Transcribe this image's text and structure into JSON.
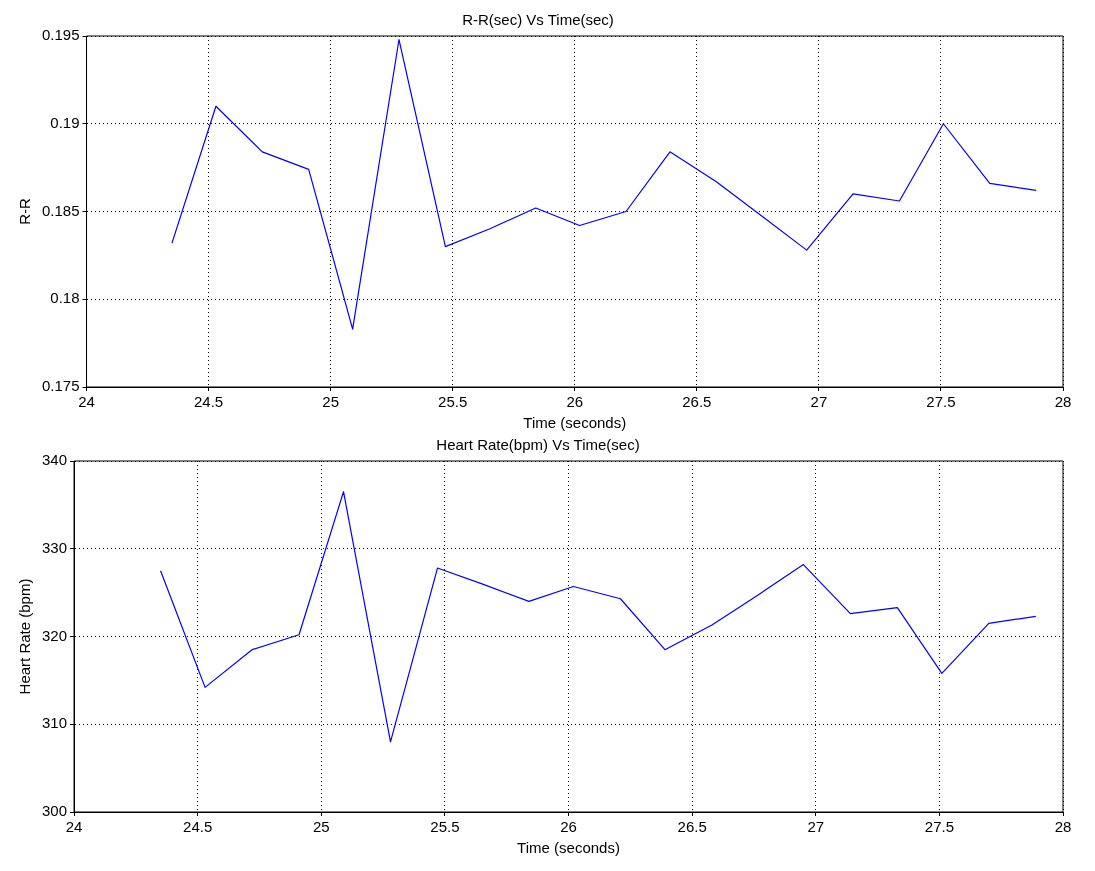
{
  "chart_data": [
    {
      "type": "line",
      "title": "R-R(sec) Vs Time(sec)",
      "xlabel": "Time (seconds)",
      "ylabel": "R-R",
      "x": [
        24.35,
        24.53,
        24.72,
        24.91,
        25.09,
        25.28,
        25.47,
        25.65,
        25.84,
        26.02,
        26.21,
        26.39,
        26.58,
        26.77,
        26.95,
        27.14,
        27.33,
        27.51,
        27.7,
        27.89
      ],
      "series": [
        {
          "color": "#0000ff",
          "values": [
            0.1832,
            0.191,
            0.1884,
            0.1874,
            0.1783,
            0.1948,
            0.183,
            0.184,
            0.1852,
            0.1842,
            0.185,
            0.1884,
            0.1867,
            0.1847,
            0.1828,
            0.186,
            0.1856,
            0.19,
            0.1866,
            0.1862
          ]
        }
      ],
      "xlim": [
        24,
        28
      ],
      "xticks": [
        24,
        24.5,
        25,
        25.5,
        26,
        26.5,
        27,
        27.5,
        28
      ],
      "ylim": [
        0.175,
        0.195
      ],
      "yticks": [
        0.175,
        0.18,
        0.185,
        0.19,
        0.195
      ],
      "grid": true,
      "legend": false,
      "marker": "none",
      "line_style": "solid"
    },
    {
      "type": "line",
      "title": "Heart Rate(bpm) Vs Time(sec)",
      "xlabel": "Time (seconds)",
      "ylabel": "Heart Rate (bpm)",
      "x": [
        24.35,
        24.53,
        24.72,
        24.91,
        25.09,
        25.28,
        25.47,
        25.65,
        25.84,
        26.02,
        26.21,
        26.39,
        26.58,
        26.77,
        26.95,
        27.14,
        27.33,
        27.51,
        27.7,
        27.89
      ],
      "series": [
        {
          "color": "#0000ff",
          "values": [
            327.5,
            314.2,
            318.5,
            320.2,
            336.5,
            308,
            327.8,
            326,
            324,
            325.7,
            324.3,
            318.5,
            321.3,
            324.8,
            328.2,
            322.6,
            323.3,
            315.8,
            321.5,
            322.3
          ]
        }
      ],
      "xlim": [
        24,
        28
      ],
      "xticks": [
        24,
        24.5,
        25,
        25.5,
        26,
        26.5,
        27,
        27.5,
        28
      ],
      "ylim": [
        300,
        340
      ],
      "yticks": [
        300,
        310,
        320,
        330,
        340
      ],
      "grid": true,
      "legend": false,
      "marker": "none",
      "line_style": "solid"
    }
  ]
}
